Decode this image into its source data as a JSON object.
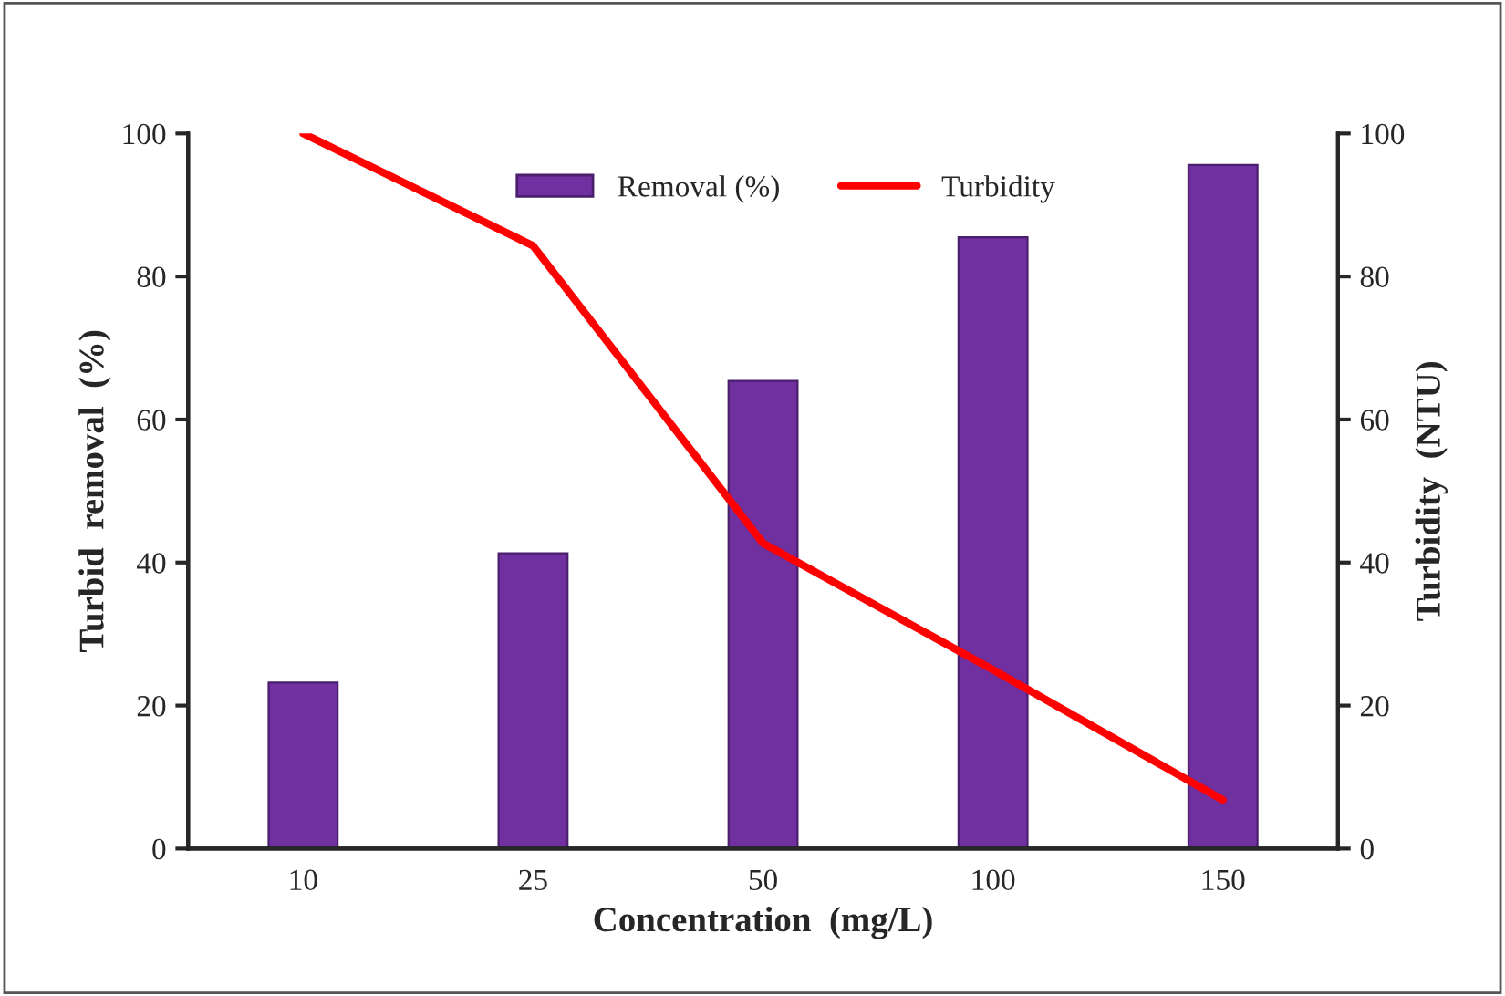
{
  "chart_data": {
    "type": "bar",
    "xlabel": "Concentration  (mg/L)",
    "ylabel": "Turbid  removal  (%)",
    "y2label": "Turbidity  (NTU)",
    "categories": [
      "10",
      "25",
      "50",
      "100",
      "150"
    ],
    "series": [
      {
        "name": "Removal (%)",
        "color": "#7030a0",
        "values": [
          23.2,
          41.3,
          65.4,
          85.5,
          95.6
        ]
      },
      {
        "name": "Turbidity",
        "type": "line",
        "axis": "y2",
        "color": "#ff0000",
        "values": [
          100,
          84.3,
          42.7,
          25,
          6.8
        ]
      }
    ],
    "ylim": [
      0,
      100
    ],
    "yticks": [
      0,
      20,
      40,
      60,
      80,
      100
    ],
    "y2lim": [
      0,
      100
    ],
    "y2ticks": [
      0,
      20,
      40,
      60,
      80,
      100
    ],
    "grid": false,
    "legend": "top",
    "marker": "none",
    "line_style": "solid"
  }
}
